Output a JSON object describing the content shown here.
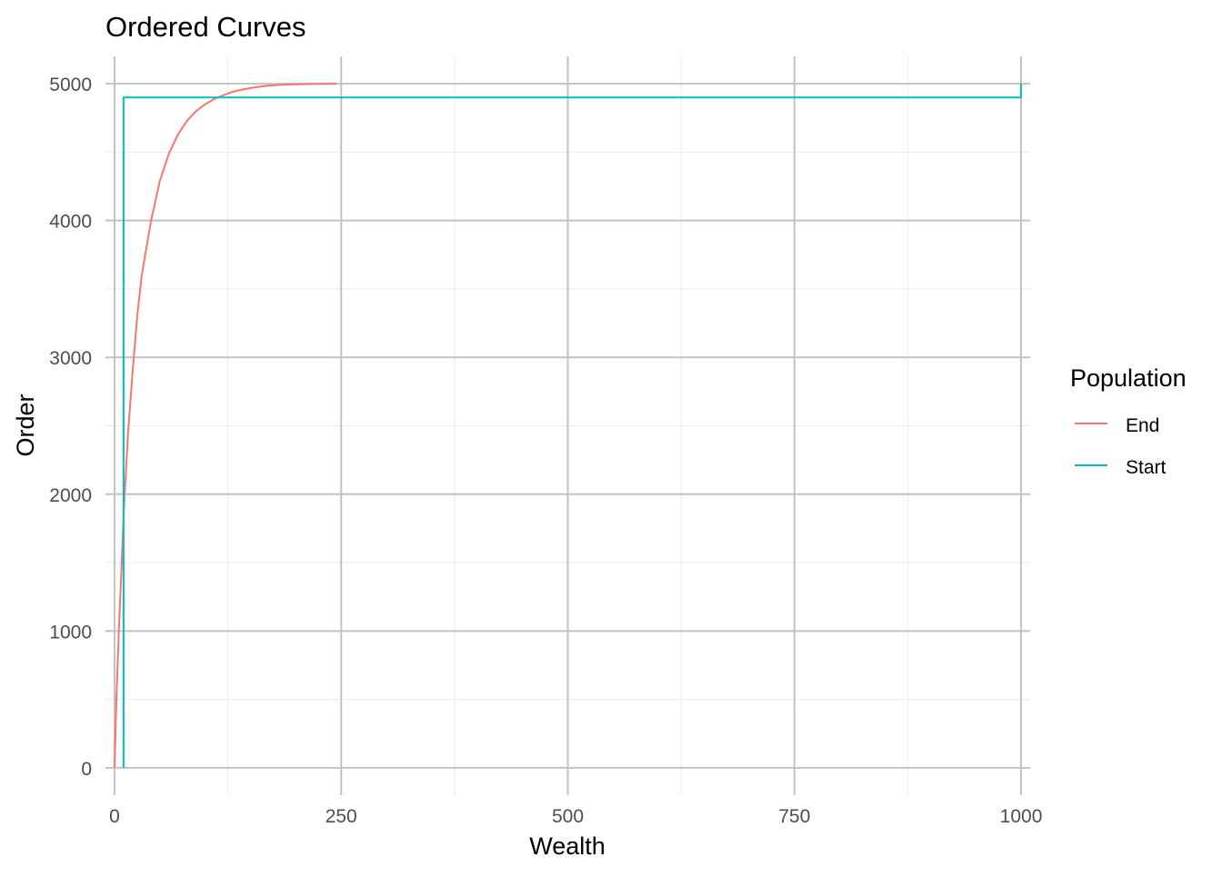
{
  "chart_data": {
    "type": "line",
    "title": "Ordered Curves",
    "xlabel": "Wealth",
    "ylabel": "Order",
    "xlim": [
      -10,
      1010
    ],
    "ylim": [
      -200,
      5200
    ],
    "x_ticks": [
      0,
      250,
      500,
      750,
      1000
    ],
    "x_tick_labels": [
      "0",
      "250",
      "500",
      "750",
      "1000"
    ],
    "y_ticks": [
      0,
      1000,
      2000,
      3000,
      4000,
      5000
    ],
    "y_tick_labels": [
      "0",
      "1000",
      "2000",
      "3000",
      "4000",
      "5000"
    ],
    "x_minor_ticks": [
      125,
      375,
      625,
      875
    ],
    "y_minor_ticks": [
      500,
      1500,
      2500,
      3500,
      4500
    ],
    "grid": true,
    "legend": {
      "title": "Population",
      "position": "right",
      "entries": [
        {
          "label": "End",
          "color": "#F8766D"
        },
        {
          "label": "Start",
          "color": "#00BFC4"
        }
      ]
    },
    "series": [
      {
        "name": "End",
        "color": "#F8766D",
        "x": [
          0,
          2,
          5,
          8,
          10,
          15,
          20,
          25,
          30,
          40,
          50,
          60,
          70,
          80,
          90,
          100,
          110,
          120,
          130,
          140,
          150,
          160,
          170,
          180,
          190,
          200,
          220,
          245
        ],
        "y": [
          0,
          500,
          1050,
          1500,
          1850,
          2450,
          2900,
          3300,
          3600,
          3990,
          4290,
          4490,
          4630,
          4730,
          4800,
          4850,
          4888,
          4916,
          4940,
          4956,
          4968,
          4978,
          4986,
          4991,
          4994,
          4996,
          4998,
          5000
        ]
      },
      {
        "name": "Start",
        "color": "#00BFC4",
        "x": [
          10,
          10,
          1000,
          1000
        ],
        "y": [
          0,
          4900,
          4900,
          5000
        ]
      }
    ]
  }
}
